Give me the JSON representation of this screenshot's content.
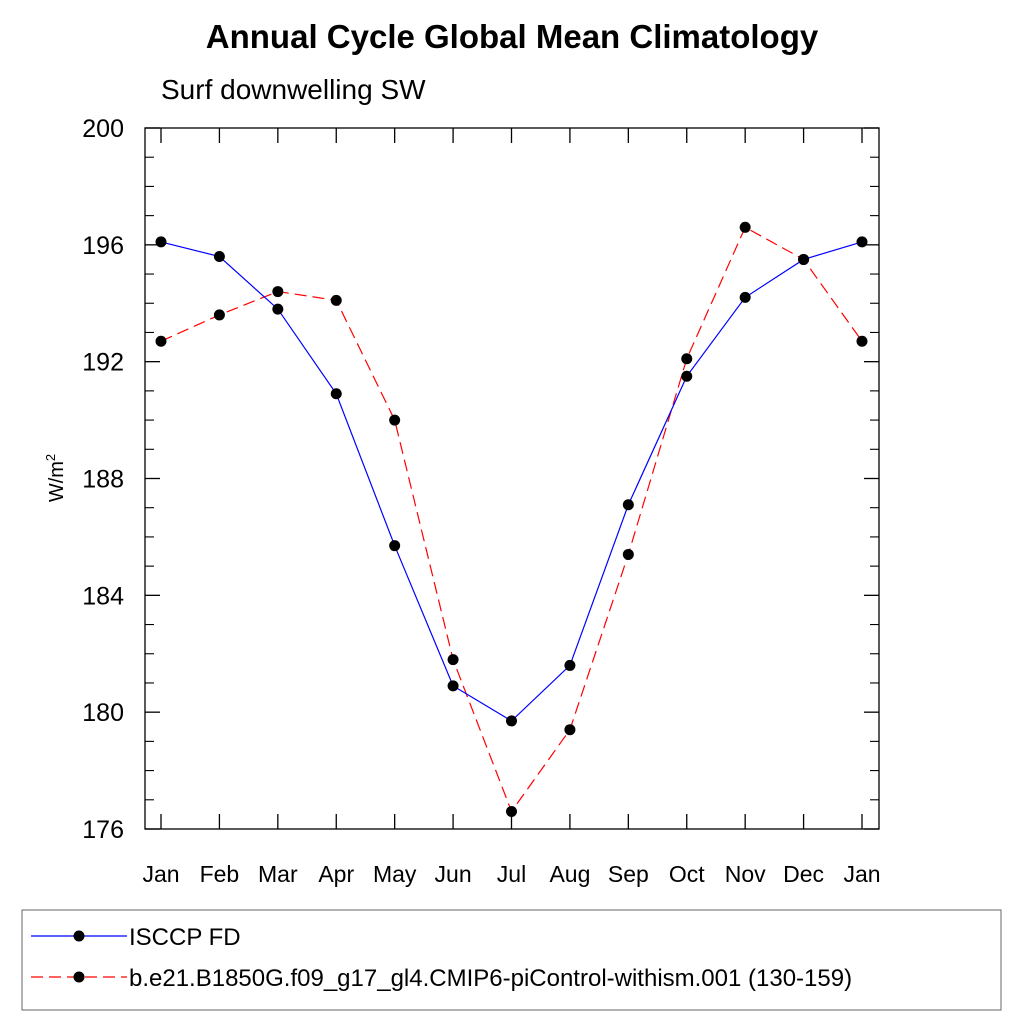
{
  "chart_data": {
    "type": "line",
    "title": "Annual Cycle Global Mean Climatology",
    "subtitle": "Surf downwelling SW",
    "ylabel": "W/m",
    "ylabel_sup": "2",
    "xlabel": "",
    "categories": [
      "Jan",
      "Feb",
      "Mar",
      "Apr",
      "May",
      "Jun",
      "Jul",
      "Aug",
      "Sep",
      "Oct",
      "Nov",
      "Dec",
      "Jan"
    ],
    "ylim": [
      176,
      200
    ],
    "yticks": [
      176,
      180,
      184,
      188,
      192,
      196,
      200
    ],
    "grid": false,
    "legend_position": "bottom",
    "series": [
      {
        "name": "ISCCP FD",
        "color": "#0000ff",
        "dash": "solid",
        "marker": "filled-circle",
        "values": [
          196.1,
          195.6,
          193.8,
          190.9,
          185.7,
          180.9,
          179.7,
          181.6,
          187.1,
          191.5,
          194.2,
          195.5,
          196.1
        ]
      },
      {
        "name": "b.e21.B1850G.f09_g17_gl4.CMIP6-piControl-withism.001 (130-159)",
        "color": "#ff0000",
        "dash": "dashed",
        "marker": "filled-circle",
        "values": [
          192.7,
          193.6,
          194.4,
          194.1,
          190.0,
          181.8,
          176.6,
          179.4,
          185.4,
          192.1,
          196.6,
          195.5,
          192.7
        ]
      }
    ]
  }
}
